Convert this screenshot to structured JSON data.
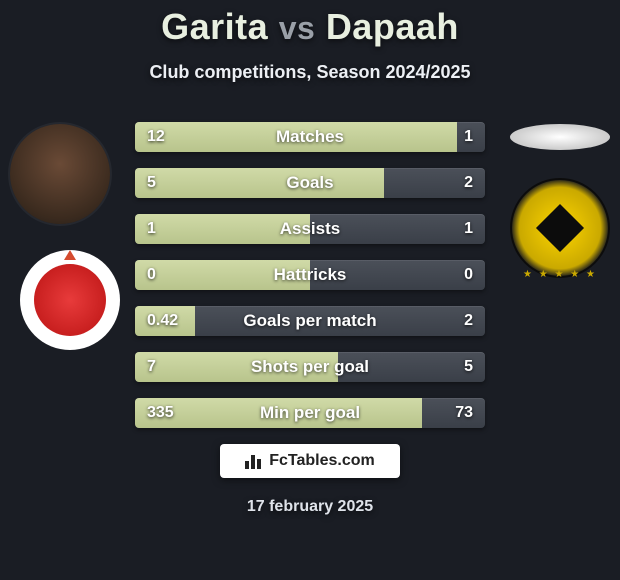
{
  "background_color": "#1a1d24",
  "title": {
    "player1": "Garita",
    "vs": "vs",
    "player2": "Dapaah",
    "player_color": "#e8efe0",
    "vs_color": "#9aa0a8",
    "fontsize": 36
  },
  "subtitle": {
    "text": "Club competitions, Season 2024/2025",
    "fontsize": 18,
    "color": "#eceff4"
  },
  "avatars": {
    "left": {
      "name": "player1-avatar",
      "shape": "circle",
      "bg": "#3a2a1e"
    },
    "right": {
      "name": "player2-avatar",
      "shape": "ellipse",
      "bg": "#ffffff"
    }
  },
  "clubs": {
    "left": {
      "name": "club-left-badge",
      "primary": "#e83b3b",
      "ring": "#ffffff"
    },
    "right": {
      "name": "club-right-badge",
      "primary": "#fdd500",
      "accent": "#0c0c0c"
    }
  },
  "stats": {
    "bar_bg": "linear-gradient(to bottom,#4b5059,#3a3f48)",
    "fill_color": "linear-gradient(to bottom,#d0daa7,#b8c48c)",
    "label_color": "#ffffff",
    "value_color": "#ffffff",
    "label_fontsize": 17,
    "value_fontsize": 16,
    "rows": [
      {
        "label": "Matches",
        "left": "12",
        "right": "1",
        "fill_pct": 92
      },
      {
        "label": "Goals",
        "left": "5",
        "right": "2",
        "fill_pct": 71
      },
      {
        "label": "Assists",
        "left": "1",
        "right": "1",
        "fill_pct": 50
      },
      {
        "label": "Hattricks",
        "left": "0",
        "right": "0",
        "fill_pct": 50
      },
      {
        "label": "Goals per match",
        "left": "0.42",
        "right": "2",
        "fill_pct": 17
      },
      {
        "label": "Shots per goal",
        "left": "7",
        "right": "5",
        "fill_pct": 58
      },
      {
        "label": "Min per goal",
        "left": "335",
        "right": "73",
        "fill_pct": 82
      }
    ]
  },
  "badge": {
    "text": "FcTables.com",
    "bg": "#ffffff",
    "color": "#222222",
    "fontsize": 16
  },
  "date": {
    "text": "17 february 2025",
    "color": "#dfe3ea",
    "fontsize": 16
  }
}
